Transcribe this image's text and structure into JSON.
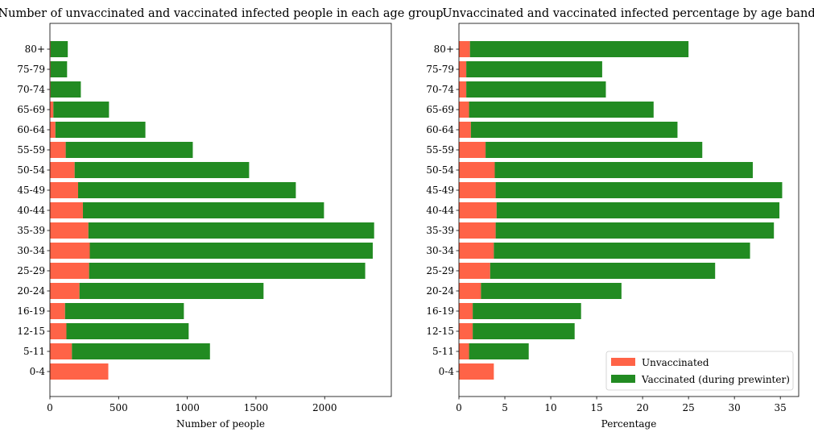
{
  "colors": {
    "unvaccinated": "#ff6347",
    "vaccinated": "#228b22"
  },
  "chart_data": [
    {
      "type": "bar",
      "orientation": "horizontal",
      "stacked": true,
      "title": "Number of unvaccinated and vaccinated infected people in each age group",
      "xlabel": "Number of people",
      "ylabel": "",
      "xlim": [
        0,
        2485
      ],
      "xticks": [
        0,
        500,
        1000,
        1500,
        2000
      ],
      "categories": [
        "0-4",
        "5-11",
        "12-15",
        "16-19",
        "20-24",
        "25-29",
        "30-34",
        "35-39",
        "40-44",
        "45-49",
        "50-54",
        "55-59",
        "60-64",
        "65-69",
        "70-74",
        "75-79",
        "80+"
      ],
      "series": [
        {
          "values": [
            425,
            160,
            120,
            110,
            215,
            285,
            290,
            280,
            240,
            205,
            180,
            115,
            40,
            25,
            5,
            5,
            5
          ]
        },
        {
          "values": [
            0,
            1005,
            890,
            865,
            1340,
            2010,
            2060,
            2080,
            1755,
            1585,
            1270,
            925,
            655,
            405,
            220,
            120,
            125
          ]
        }
      ],
      "grid": false,
      "legend": "none"
    },
    {
      "type": "bar",
      "orientation": "horizontal",
      "stacked": true,
      "title": "Unvaccinated and vaccinated infected percentage by age band",
      "xlabel": "Percentage",
      "ylabel": "",
      "xlim": [
        0,
        37
      ],
      "xticks": [
        0,
        5,
        10,
        15,
        20,
        25,
        30,
        35
      ],
      "categories": [
        "0-4",
        "5-11",
        "12-15",
        "16-19",
        "20-24",
        "25-29",
        "30-34",
        "35-39",
        "40-44",
        "45-49",
        "50-54",
        "55-59",
        "60-64",
        "65-69",
        "70-74",
        "75-79",
        "80+"
      ],
      "series": [
        {
          "name": "Unvaccinated",
          "values": [
            3.8,
            1.1,
            1.5,
            1.5,
            2.4,
            3.4,
            3.8,
            4.0,
            4.1,
            4.0,
            3.9,
            2.9,
            1.3,
            1.1,
            0.8,
            0.8,
            1.2
          ]
        },
        {
          "name": "Vaccinated (during prewinter)",
          "values": [
            0,
            6.5,
            11.1,
            11.8,
            15.3,
            24.5,
            27.9,
            30.3,
            30.8,
            31.2,
            28.1,
            23.6,
            22.5,
            20.1,
            15.2,
            14.8,
            23.8
          ]
        }
      ],
      "grid": false,
      "legend": "bottom-right"
    }
  ]
}
